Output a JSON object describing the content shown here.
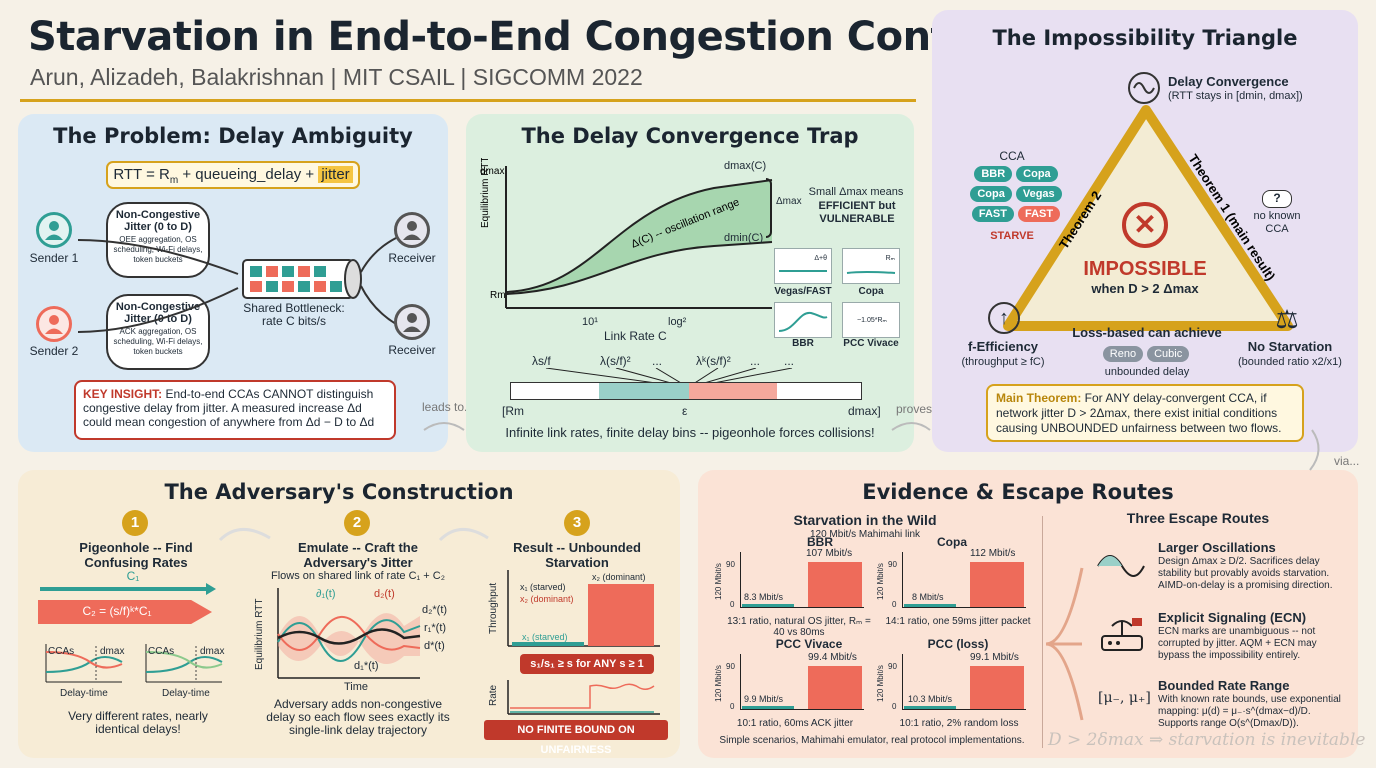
{
  "header": {
    "title": "Starvation in End-to-End Congestion Control",
    "subtitle": "Arun, Alizadeh, Balakrishnan | MIT CSAIL | SIGCOMM 2022"
  },
  "colors": {
    "gold": "#d6a21c",
    "red": "#c0392b",
    "teal": "#2f9e94",
    "salmon": "#ee6b5a",
    "green_panel": "#dcefdf",
    "blue_panel": "#dbe9f4",
    "purple_panel": "#e8e0f2",
    "peach_panel": "#fbe3d6"
  },
  "problem": {
    "title": "The Problem: Delay Ambiguity",
    "formula_a": "RTT = R",
    "formula_sub": "m",
    "formula_b": " + queueing_delay + ",
    "formula_hl": "jitter",
    "sender1": "Sender 1",
    "sender2": "Sender 2",
    "receiver1": "Receiver",
    "receiver2": "Receiver",
    "cloud1_title": "Non-Congestive Jitter (0 to D)",
    "cloud1_body": "OEE aggregation, OS scheduling, Wi-Fi delays, token buckets",
    "cloud2_title": "Non-Congestive Jitter (0 to D)",
    "cloud2_body": "ACK aggregation, OS scheduling, Wi-Fi delays, token buckets",
    "bottleneck": "Shared Bottleneck: rate C bits/s",
    "insight_label": "KEY INSIGHT:",
    "insight_text": " End-to-end CCAs CANNOT distinguish congestive delay from jitter. A measured increase Δd could mean congestion of anywhere from Δd − D to Δd",
    "leads_to": "leads to..."
  },
  "trap": {
    "title": "The Delay Convergence Trap",
    "ylabel": "Equilibrium RTT",
    "xlabel": "Link Rate C",
    "ytop": "dmax",
    "ybottom": "Rm",
    "x1": "10¹",
    "x2": "log²",
    "dmax_label": "dmax(C)",
    "dmin_label": "dmin(C)",
    "band_label": "Δ(C) -- oscillation range",
    "delta_label": "Δmax",
    "note_a": "Small Δmax means",
    "note_b": "EFFICIENT but VULNERABLE",
    "mini": [
      "Vegas/FAST",
      "Copa",
      "BBR",
      "PCC Vivace"
    ],
    "mini_tags": [
      "Δ+θ",
      "Rₘ",
      "",
      "~1.05*Rₘ"
    ],
    "bins": [
      "λs/f",
      "λ(s/f)²",
      "...",
      "λᵏ(s/f)²",
      "...",
      "..."
    ],
    "bin_left": "[Rm",
    "bin_mid": "ε",
    "bin_right": "dmax]",
    "caption": "Infinite link rates, finite delay bins -- pigeonhole forces collisions!",
    "proves": "proves..."
  },
  "triangle": {
    "title": "The Impossibility Triangle",
    "top_title": "Delay Convergence",
    "top_sub": "(RTT stays in [dmin, dmax])",
    "left_side": "Theorem 2",
    "right_side": "Theorem 1 (main result)",
    "center_a": "IMPOSSIBLE",
    "center_b": "when D > 2 Δmax",
    "cca_label": "CCA",
    "cca_pills": [
      "BBR",
      "Copa",
      "Copa",
      "Vegas",
      "FAST",
      "FAST"
    ],
    "starve": "STARVE",
    "unknown_q": "?",
    "unknown": "no known CCA",
    "bottom_text": "Loss-based can achieve",
    "loss_pills": [
      "Reno",
      "Cubic"
    ],
    "unbounded": "unbounded delay",
    "left_title": "f-Efficiency",
    "left_sub": "(throughput ≥ fC)",
    "right_title": "No Starvation",
    "right_sub": "(bounded ratio x2/x1)",
    "theorem_label": "Main Theorem:",
    "theorem_text": " For ANY delay-convergent CCA, if network jitter D > 2Δmax, there exist initial conditions causing UNBOUNDED unfairness between two flows.",
    "via": "via..."
  },
  "adversary": {
    "title": "The Adversary's Construction",
    "step1_num": "1",
    "step1_title": "Pigeonhole -- Find Confusing Rates",
    "c1": "C₁",
    "c2": "C₂ = (s/f)ᵏ*C₁",
    "mini_title1": "CCAs",
    "mini_title2": "CCAs",
    "mini_dmax": "dmax",
    "mini_ylabel": "Delay-time",
    "mini_xlabel": "Delay-time",
    "step1_caption": "Very different rates, nearly identical delays!",
    "step2_num": "2",
    "step2_title": "Emulate -- Craft the Adversary's Jitter",
    "step2_sub": "Flows on shared link of rate C₁ + C₂",
    "step2_ylabel": "Equilibrium RTT",
    "step2_xlabel": "Time",
    "d1": "∂₁(t)",
    "d2": "d₂(t)",
    "d2s": "d₂*(t)",
    "r1s": "r₁*(t)",
    "ds": "d*(t)",
    "d1s": "d₁*(t)",
    "step2_caption": "Adversary adds non-congestive delay so each flow sees exactly its single-link delay trajectory",
    "step3_num": "3",
    "step3_title": "Result -- Unbounded Starvation",
    "tput": "Throughput",
    "x1s": "x₁ (starved)",
    "x2d": "x₂ (dominant)",
    "x2dom": "x₂ (dominant)",
    "x1st": "x₁ (starved)",
    "ratio": "s₁/s₁ ≥ s for ANY s ≥ 1",
    "rate": "Rate",
    "nobound": "NO FINITE BOUND ON UNFAIRNESS"
  },
  "evidence": {
    "title": "Evidence & Escape Routes",
    "wild_title": "Starvation in the Wild",
    "wild_sub": "120 Mbit/s Mahimahi link",
    "charts": [
      {
        "name": "BBR",
        "hi": "107 Mbit/s",
        "lo": "8.3 Mbit/s",
        "note": "13:1 ratio, natural OS jitter, Rₘ = 40 vs 80ms"
      },
      {
        "name": "Copa",
        "hi": "112 Mbit/s",
        "lo": "8 Mbit/s",
        "note": "14:1 ratio, one 59ms jitter packet"
      },
      {
        "name": "PCC Vivace",
        "hi": "99.4 Mbit/s",
        "lo": "9.9 Mbit/s",
        "note": "10:1 ratio, 60ms ACK jitter"
      },
      {
        "name": "PCC (loss)",
        "hi": "99.1 Mbit/s",
        "lo": "10.3 Mbit/s",
        "note": "10:1 ratio, 2% random loss"
      }
    ],
    "axis_label": "120 Mbit/s",
    "ticks": [
      "90",
      "0"
    ],
    "wild_caption": "Simple scenarios, Mahimahi emulator, real protocol implementations.",
    "escape_title": "Three Escape Routes",
    "routes": [
      {
        "title": "Larger Oscillations",
        "text": "Design Δmax ≥ D/2. Sacrifices delay stability but provably avoids starvation. AIMD-on-delay is a promising direction."
      },
      {
        "title": "Explicit Signaling (ECN)",
        "text": "ECN marks are unambiguous -- not corrupted by jitter. AQM + ECN may bypass the impossibility entirely."
      },
      {
        "title": "Bounded Rate Range",
        "text": "With known rate bounds, use exponential mapping: μ(d) = μ₋·s^(dmax−d)/D. Supports range O(s^(Dmax/D))."
      }
    ],
    "bounded_icon_text": "[μ₋, μ₊]",
    "watermark": "D > 2δmax ⇒ starvation is inevitable"
  }
}
